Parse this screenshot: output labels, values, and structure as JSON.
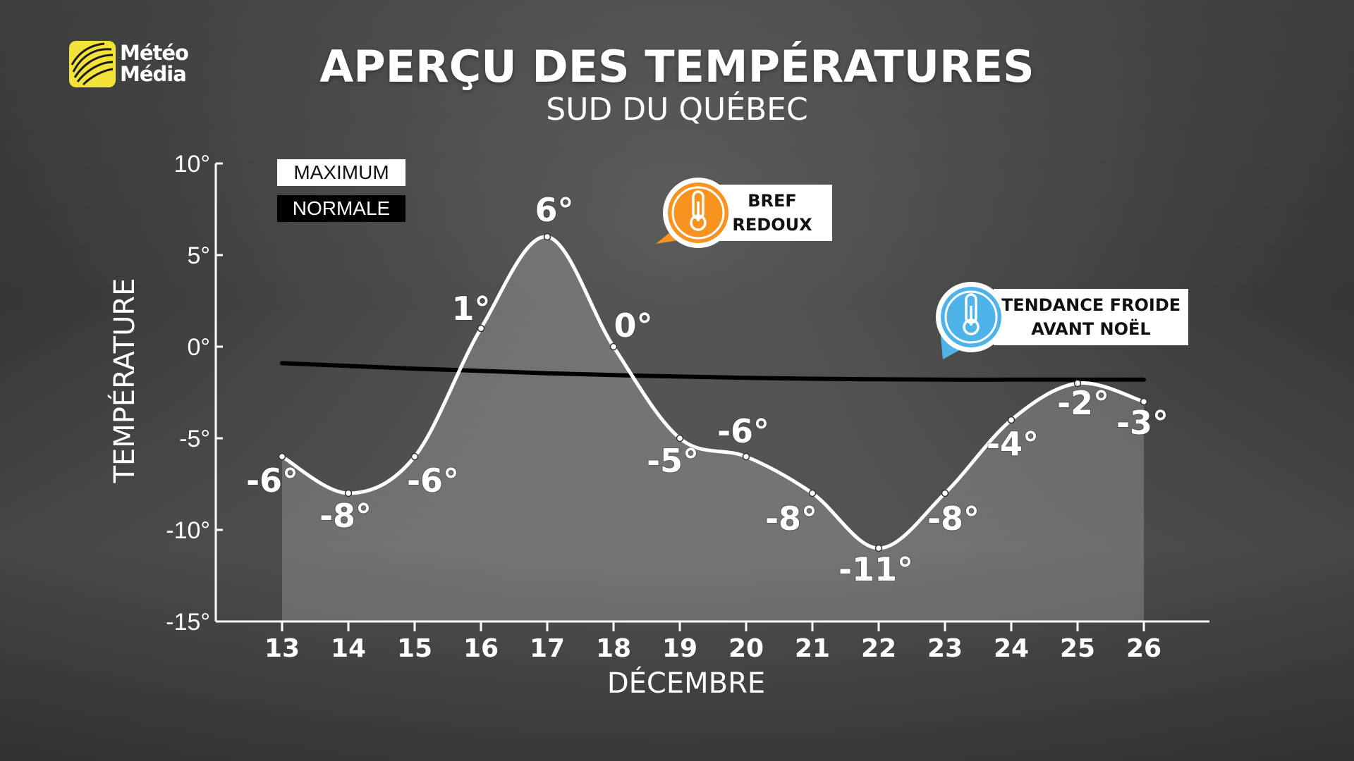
{
  "brand": {
    "name_line1": "Météo",
    "name_line2": "Média",
    "accent": "#f2e23a"
  },
  "title": "APERÇU DES TEMPÉRATURES",
  "subtitle": "SUD DU QUÉBEC",
  "legend": {
    "maximum": "MAXIMUM",
    "normale": "NORMALE"
  },
  "callouts": {
    "warm": {
      "line1": "BREF",
      "line2": "REDOUX",
      "icon": "thermometer-icon",
      "color": "#f7931e"
    },
    "cold": {
      "line1": "TENDANCE FROIDE",
      "line2": "AVANT NOËL",
      "icon": "thermometer-icon",
      "color": "#4db3e8"
    }
  },
  "chart_data": {
    "type": "line",
    "title": "APERÇU DES TEMPÉRATURES",
    "subtitle": "SUD DU QUÉBEC",
    "xlabel": "DÉCEMBRE",
    "ylabel": "TEMPÉRATURE",
    "ylim": [
      -15,
      10
    ],
    "yticks": [
      10,
      5,
      0,
      -5,
      -10,
      -15
    ],
    "ytick_labels": [
      "10°",
      "5°",
      "0°",
      "-5°",
      "-10°",
      "-15°"
    ],
    "categories": [
      "13",
      "14",
      "15",
      "16",
      "17",
      "18",
      "19",
      "20",
      "21",
      "22",
      "23",
      "24",
      "25",
      "26"
    ],
    "series": [
      {
        "name": "MAXIMUM",
        "color": "#ffffff",
        "values": [
          -6,
          -8,
          -6,
          1,
          6,
          0,
          -5,
          -6,
          -8,
          -11,
          -8,
          -4,
          -2,
          -3
        ],
        "labels": [
          "-6°",
          "-8°",
          "-6°",
          "1°",
          "6°",
          "0°",
          "-5°",
          "-6°",
          "-8°",
          "-11°",
          "-8°",
          "-4°",
          "-2°",
          "-3°"
        ]
      },
      {
        "name": "NORMALE",
        "color": "#000000",
        "values": [
          -0.9,
          -1.05,
          -1.2,
          -1.32,
          -1.45,
          -1.55,
          -1.63,
          -1.7,
          -1.75,
          -1.78,
          -1.8,
          -1.8,
          -1.8,
          -1.8
        ]
      }
    ],
    "grid": false,
    "legend_position": "top-left"
  }
}
